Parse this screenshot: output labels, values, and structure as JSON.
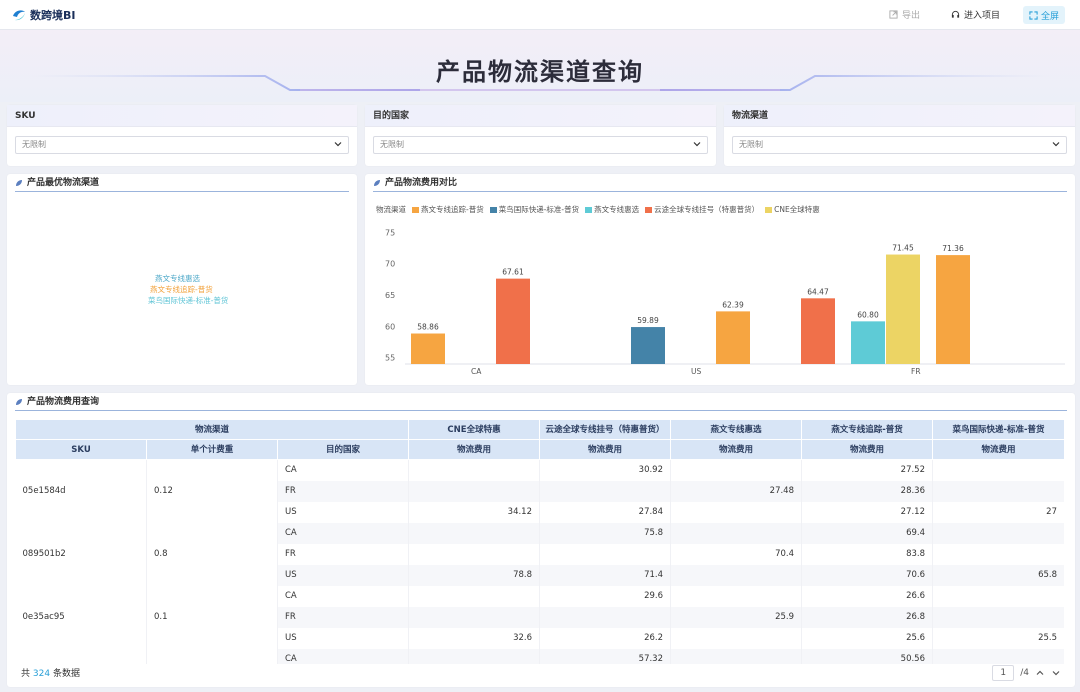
{
  "app": {
    "name": "数跨境BI"
  },
  "toolbar": {
    "export": "导出",
    "enter_project": "进入项目",
    "fullscreen": "全屏"
  },
  "page": {
    "title": "产品物流渠道查询"
  },
  "filters": [
    {
      "label": "SKU",
      "value": "无限制"
    },
    {
      "label": "目的国家",
      "value": "无限制"
    },
    {
      "label": "物流渠道",
      "value": "无限制"
    }
  ],
  "best_channel": {
    "title": "产品最优物流渠道",
    "words": [
      {
        "text": "燕文专线惠选",
        "color": "#4fa9c9"
      },
      {
        "text": "燕文专线追踪-普货",
        "color": "#f2a23c"
      },
      {
        "text": "菜鸟国际快递-标准-普货",
        "color": "#5fc4d6"
      }
    ]
  },
  "cost_chart": {
    "title": "产品物流费用对比",
    "legend_title": "物流渠道"
  },
  "chart_data": {
    "type": "bar",
    "categories": [
      "CA",
      "US",
      "FR"
    ],
    "ylim": [
      54,
      76
    ],
    "yticks": [
      55,
      60,
      65,
      70,
      75
    ],
    "series": [
      {
        "name": "燕文专线追踪-普货",
        "color": "#f6a541"
      },
      {
        "name": "菜鸟国际快递-标准-普货",
        "color": "#4483a8"
      },
      {
        "name": "燕文专线惠选",
        "color": "#5ecbd6"
      },
      {
        "name": "云途全球专线挂号（特惠普货）",
        "color": "#f0704a"
      },
      {
        "name": "CNE全球特惠",
        "color": "#ecd464"
      }
    ],
    "bars": [
      {
        "category": "CA",
        "series": "燕文专线追踪-普货",
        "value": 58.86,
        "label": "58.86"
      },
      {
        "category": "CA",
        "series": "云途全球专线挂号（特惠普货）",
        "value": 67.61,
        "label": "67.61"
      },
      {
        "category": "US",
        "series": "菜鸟国际快递-标准-普货",
        "value": 59.89,
        "label": "59.89"
      },
      {
        "category": "US",
        "series": "燕文专线追踪-普货",
        "value": 62.39,
        "label": "62.39"
      },
      {
        "category": "US",
        "series": "云途全球专线挂号（特惠普货）",
        "value": 64.47,
        "label": "64.47"
      },
      {
        "category": "US",
        "series": "CNE全球特惠",
        "value": 71.45,
        "label": "71.45"
      },
      {
        "category": "FR",
        "series": "燕文专线惠选",
        "value": 60.8,
        "label": "60.80"
      },
      {
        "category": "FR",
        "series": "燕文专线追踪-普货",
        "value": 71.36,
        "label": "71.36"
      }
    ]
  },
  "cost_table": {
    "title": "产品物流费用查询",
    "header": {
      "channel": "物流渠道",
      "sku": "SKU",
      "unit_weight": "单个计费重",
      "country": "目的国家",
      "cost": "物流费用",
      "channels": [
        "CNE全球特惠",
        "云途全球专线挂号（特惠普货）",
        "燕文专线惠选",
        "燕文专线追踪-普货",
        "菜鸟国际快递-标准-普货"
      ]
    },
    "groups": [
      {
        "sku": "05e1584d",
        "weight": "0.12",
        "rows": [
          {
            "country": "CA",
            "values": [
              "",
              "30.92",
              "",
              "27.52",
              ""
            ]
          },
          {
            "country": "FR",
            "values": [
              "",
              "",
              "27.48",
              "28.36",
              ""
            ]
          },
          {
            "country": "US",
            "values": [
              "34.12",
              "27.84",
              "",
              "27.12",
              "27"
            ]
          }
        ]
      },
      {
        "sku": "089501b2",
        "weight": "0.8",
        "rows": [
          {
            "country": "CA",
            "values": [
              "",
              "75.8",
              "",
              "69.4",
              ""
            ]
          },
          {
            "country": "FR",
            "values": [
              "",
              "",
              "70.4",
              "83.8",
              ""
            ]
          },
          {
            "country": "US",
            "values": [
              "78.8",
              "71.4",
              "",
              "70.6",
              "65.8"
            ]
          }
        ]
      },
      {
        "sku": "0e35ac95",
        "weight": "0.1",
        "rows": [
          {
            "country": "CA",
            "values": [
              "",
              "29.6",
              "",
              "26.6",
              ""
            ]
          },
          {
            "country": "FR",
            "values": [
              "",
              "",
              "25.9",
              "26.8",
              ""
            ]
          },
          {
            "country": "US",
            "values": [
              "32.6",
              "26.2",
              "",
              "25.6",
              "25.5"
            ]
          }
        ]
      },
      {
        "sku": "",
        "weight": "",
        "rows": [
          {
            "country": "CA",
            "values": [
              "",
              "57.32",
              "",
              "50.56",
              ""
            ]
          }
        ]
      }
    ],
    "footer": {
      "prefix": "共",
      "count": "324",
      "suffix": "条数据",
      "page": "1",
      "pages": "/4"
    }
  },
  "colors": {
    "accent": "#2aa0d8",
    "header_bg": "#d8e5f6"
  }
}
